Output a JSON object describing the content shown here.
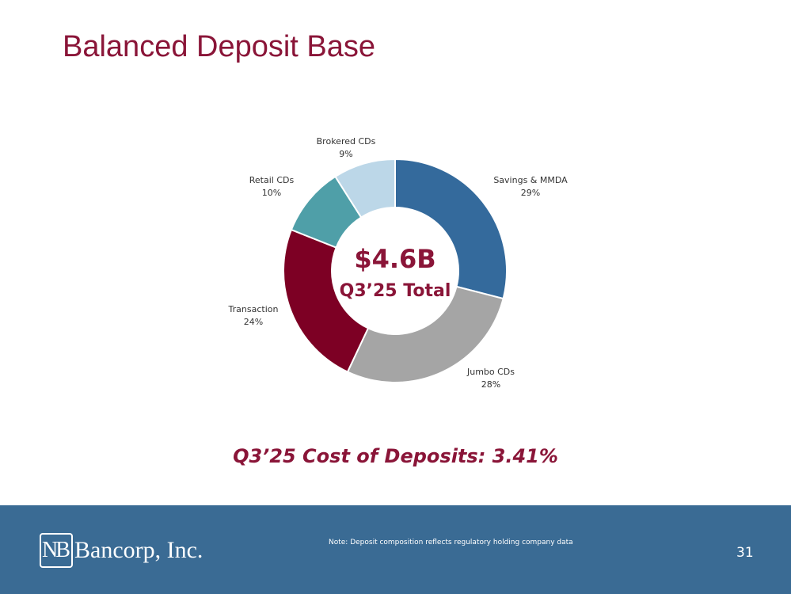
{
  "slide": {
    "title": "Balanced Deposit Base",
    "cost_text": "Q3’25 Cost of Deposits: 3.41%",
    "note": "Note: Deposit composition reflects regulatory holding company data",
    "page_number": "31",
    "logo_mark": "NB",
    "logo_text": "Bancorp, Inc."
  },
  "colors": {
    "accent": "#8a1538",
    "footer": "#3a6b94"
  },
  "chart_data": {
    "type": "pie",
    "variant": "donut",
    "center_value": "$4.6B",
    "center_label": "Q3’25 Total",
    "slices": [
      {
        "name": "Savings & MMDA",
        "value": 29,
        "label": "29%",
        "color": "#346a9c"
      },
      {
        "name": "Jumbo CDs",
        "value": 28,
        "label": "28%",
        "color": "#a5a5a5"
      },
      {
        "name": "Transaction",
        "value": 24,
        "label": "24%",
        "color": "#7d0024"
      },
      {
        "name": "Retail CDs",
        "value": 10,
        "label": "10%",
        "color": "#4f9fa8"
      },
      {
        "name": "Brokered CDs",
        "value": 9,
        "label": "9%",
        "color": "#bcd7e8"
      }
    ]
  }
}
